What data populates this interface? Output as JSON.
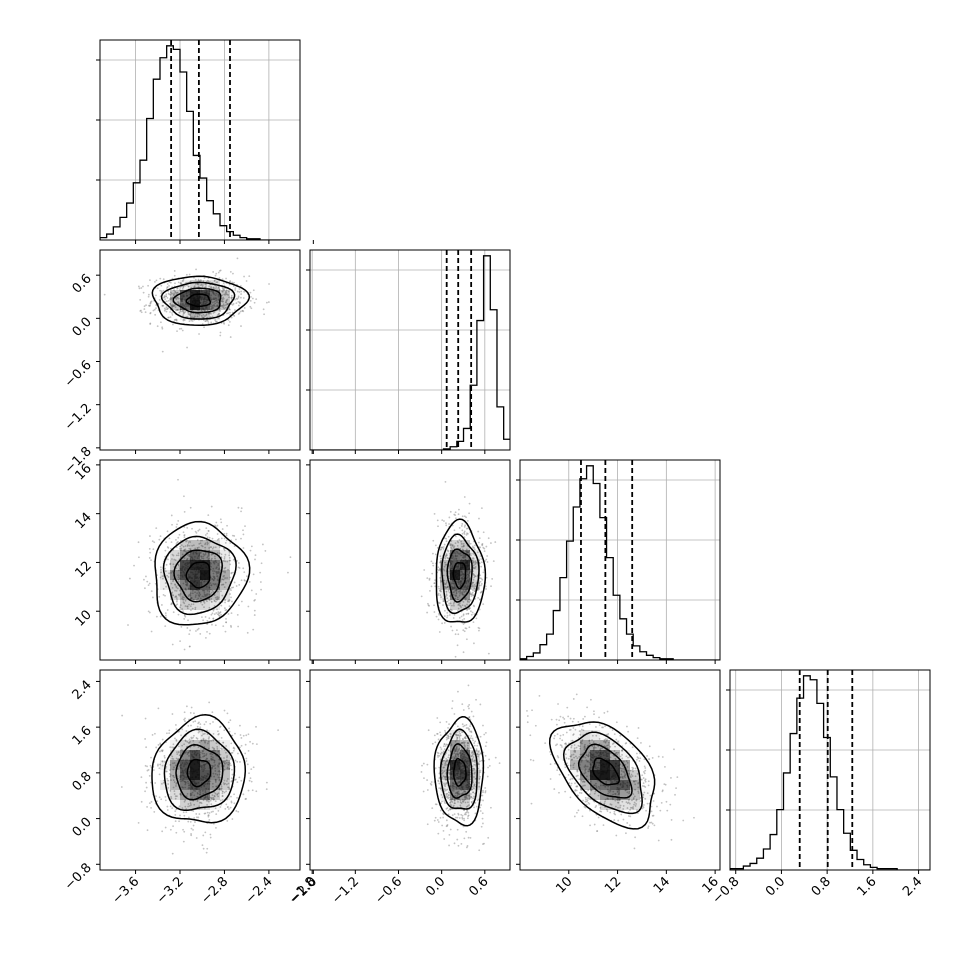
{
  "chart_data": {
    "type": "corner",
    "grid": true,
    "quantile_lines": true,
    "colors": {
      "hist": "#000000",
      "contour": "#000000",
      "scatter": "#888888",
      "density": "#000000",
      "grid": "#b0b0b0"
    },
    "params": [
      {
        "ticks": [
          -3.6,
          -3.2,
          -2.8,
          -2.4,
          -2.0
        ],
        "tick_labels": [
          "−3.6",
          "−3.2",
          "−2.8",
          "−2.4",
          "−2.0"
        ],
        "range": [
          -3.92,
          -2.12
        ]
      },
      {
        "ticks": [
          -1.8,
          -1.2,
          -0.6,
          0.0,
          0.6
        ],
        "tick_labels": [
          "−1.8",
          "−1.2",
          "−0.6",
          "0.0",
          "0.6"
        ],
        "range": [
          -1.83,
          0.95
        ]
      },
      {
        "ticks": [
          10,
          12,
          14,
          16
        ],
        "tick_labels": [
          "10",
          "12",
          "14",
          "16"
        ],
        "range": [
          8.0,
          16.2
        ]
      },
      {
        "ticks": [
          -0.8,
          0.0,
          0.8,
          1.6,
          2.4
        ],
        "tick_labels": [
          "−0.8",
          "0.0",
          "0.8",
          "1.6",
          "2.4"
        ],
        "range": [
          -0.9,
          2.6
        ]
      }
    ],
    "marginals": [
      {
        "bin_start": -3.92,
        "bin_width": 0.06,
        "counts": [
          2,
          5,
          11,
          19,
          31,
          48,
          67,
          102,
          135,
          153,
          163,
          160,
          141,
          108,
          71,
          52,
          33,
          22,
          12,
          7,
          4,
          2,
          1,
          1,
          0,
          0,
          0,
          0,
          0,
          0
        ],
        "quantiles": [
          -3.28,
          -3.03,
          -2.75
        ]
      },
      {
        "bin_start": -1.835,
        "bin_width": 0.093,
        "counts": [
          0,
          0,
          0,
          0,
          0,
          0,
          0,
          0,
          0,
          0,
          0,
          0,
          0,
          0,
          0,
          0,
          0,
          0,
          0,
          0,
          1,
          3,
          8,
          20,
          60,
          120,
          180,
          130,
          40,
          10,
          5,
          0
        ],
        "quantiles": [
          0.07,
          0.23,
          0.41
        ]
      },
      {
        "bin_start": 8.0,
        "bin_width": 0.273,
        "counts": [
          1,
          3,
          6,
          13,
          22,
          42,
          70,
          101,
          130,
          154,
          165,
          150,
          121,
          87,
          55,
          35,
          22,
          12,
          7,
          4,
          2,
          1,
          1,
          0,
          0,
          0,
          0,
          0,
          0,
          0
        ],
        "quantiles": [
          10.5,
          11.5,
          12.6
        ]
      },
      {
        "bin_start": -0.9,
        "bin_width": 0.117,
        "counts": [
          1,
          1,
          3,
          5,
          9,
          16,
          27,
          46,
          74,
          104,
          131,
          148,
          145,
          127,
          101,
          71,
          46,
          28,
          15,
          8,
          4,
          2,
          1,
          1,
          1,
          0,
          0,
          0,
          0,
          0
        ],
        "quantiles": [
          0.32,
          0.81,
          1.24
        ]
      }
    ],
    "pairs": [
      {
        "row": 1,
        "col": 0,
        "mx": -3.03,
        "my": 0.25,
        "sx": 0.21,
        "sy": 0.17,
        "rho": 0.0
      },
      {
        "row": 2,
        "col": 0,
        "mx": -3.03,
        "my": 11.5,
        "sx": 0.21,
        "sy": 1.05,
        "rho": 0.05
      },
      {
        "row": 2,
        "col": 1,
        "mx": 0.25,
        "my": 11.5,
        "sx": 0.17,
        "sy": 1.05,
        "rho": 0.0
      },
      {
        "row": 3,
        "col": 0,
        "mx": -3.03,
        "my": 0.81,
        "sx": 0.21,
        "sy": 0.46,
        "rho": 0.05
      },
      {
        "row": 3,
        "col": 1,
        "mx": 0.25,
        "my": 0.81,
        "sx": 0.17,
        "sy": 0.46,
        "rho": 0.0
      },
      {
        "row": 3,
        "col": 2,
        "mx": 11.5,
        "my": 0.81,
        "sx": 1.05,
        "sy": 0.46,
        "rho": -0.45
      }
    ]
  }
}
